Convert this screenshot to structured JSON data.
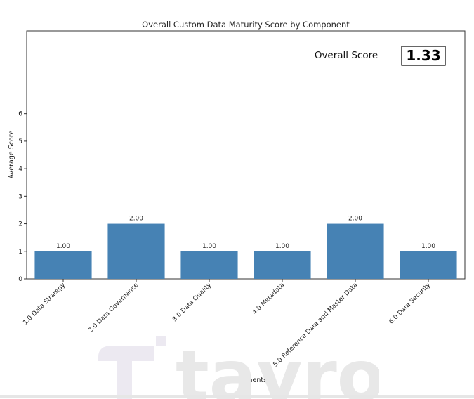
{
  "chart_data": {
    "type": "bar",
    "title": "Overall Custom Data Maturity Score by Component",
    "xlabel": "Components",
    "ylabel": "Average Score",
    "categories": [
      "1.0 Data Strategy",
      "2.0 Data Governance",
      "3.0 Data Quality",
      "4.0 Metadata",
      "5.0 Reference Data and Master Data",
      "6.0 Data Security"
    ],
    "values": [
      1.0,
      2.0,
      1.0,
      1.0,
      2.0,
      1.0
    ],
    "value_labels": [
      "1.00",
      "2.00",
      "1.00",
      "1.00",
      "2.00",
      "1.00"
    ],
    "yticks": [
      0,
      1,
      2,
      3,
      4,
      5,
      6
    ],
    "ylim": [
      0,
      9
    ],
    "bar_color": "#4682b4",
    "grid": false,
    "annotation": {
      "label": "Overall Score",
      "value": "1.33"
    }
  },
  "watermark": {
    "brand": "tavro",
    "color": "#e6e6e6"
  }
}
